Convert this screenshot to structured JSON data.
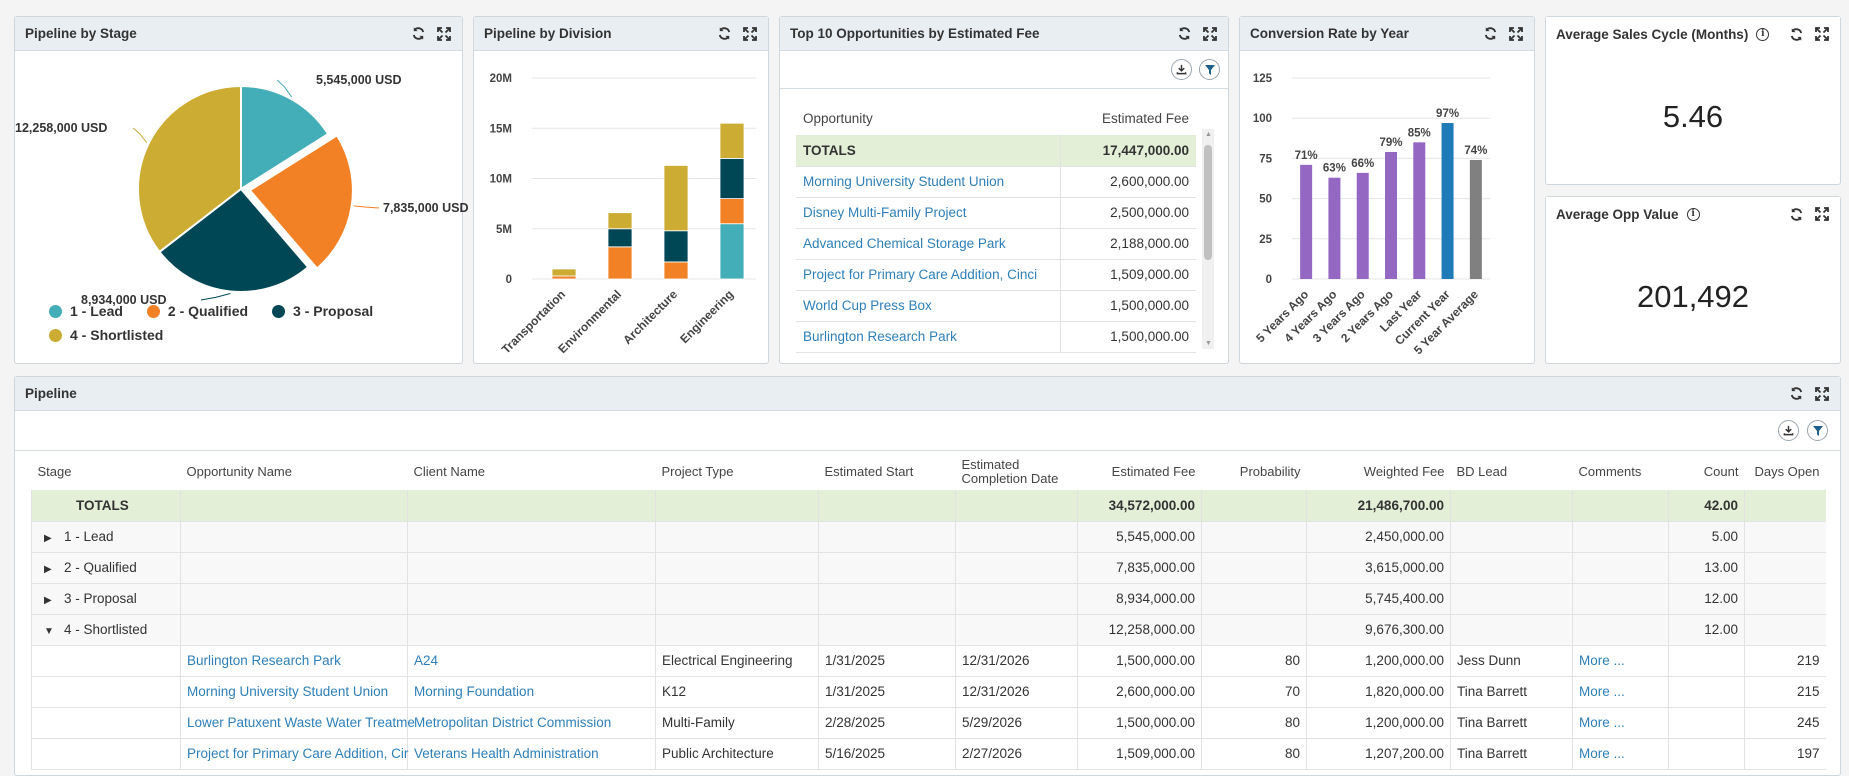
{
  "pie_panel": {
    "title": "Pipeline by Stage",
    "labels": [
      "5,545,000 USD",
      "7,835,000 USD",
      "8,934,000 USD",
      "12,258,000 USD"
    ],
    "legend": [
      "1 - Lead",
      "2 - Qualified",
      "3 - Proposal",
      "4 - Shortlisted"
    ]
  },
  "division_panel": {
    "title": "Pipeline by Division"
  },
  "top10_panel": {
    "title": "Top 10 Opportunities by Estimated Fee",
    "columns": [
      "Opportunity",
      "Estimated Fee"
    ],
    "totals": {
      "label": "TOTALS",
      "value": "17,447,000.00"
    },
    "rows": [
      {
        "name": "Morning University Student Union",
        "fee": "2,600,000.00"
      },
      {
        "name": "Disney Multi-Family Project",
        "fee": "2,500,000.00"
      },
      {
        "name": "Advanced Chemical Storage Park",
        "fee": "2,188,000.00"
      },
      {
        "name": "Project for Primary Care Addition, Cinci",
        "fee": "1,509,000.00"
      },
      {
        "name": "World Cup Press Box",
        "fee": "1,500,000.00"
      },
      {
        "name": "Burlington Research Park",
        "fee": "1,500,000.00"
      }
    ]
  },
  "conversion_panel": {
    "title": "Conversion Rate by Year"
  },
  "avg_cycle": {
    "title": "Average Sales Cycle (Months)",
    "value": "5.46"
  },
  "avg_opp": {
    "title": "Average Opp Value",
    "value": "201,492"
  },
  "pipeline": {
    "title": "Pipeline",
    "columns": [
      "Stage",
      "Opportunity Name",
      "Client Name",
      "Project Type",
      "Estimated Start",
      "Estimated Completion Date",
      "Estimated Fee",
      "Probability",
      "Weighted Fee",
      "BD Lead",
      "Comments",
      "Count",
      "Days Open"
    ],
    "totals": {
      "label": "TOTALS",
      "fee": "34,572,000.00",
      "weighted": "21,486,700.00",
      "count": "42.00"
    },
    "groups": [
      {
        "label": "1 - Lead",
        "fee": "5,545,000.00",
        "weighted": "2,450,000.00",
        "count": "5.00",
        "expanded": false
      },
      {
        "label": "2 - Qualified",
        "fee": "7,835,000.00",
        "weighted": "3,615,000.00",
        "count": "13.00",
        "expanded": false
      },
      {
        "label": "3 - Proposal",
        "fee": "8,934,000.00",
        "weighted": "5,745,400.00",
        "count": "12.00",
        "expanded": false
      },
      {
        "label": "4 - Shortlisted",
        "fee": "12,258,000.00",
        "weighted": "9,676,300.00",
        "count": "12.00",
        "expanded": true
      }
    ],
    "rows": [
      {
        "opp": "Burlington Research Park",
        "client": "A24",
        "type": "Electrical Engineering",
        "start": "1/31/2025",
        "end": "12/31/2026",
        "fee": "1,500,000.00",
        "prob": "80",
        "weighted": "1,200,000.00",
        "lead": "Jess Dunn",
        "comments": "More ...",
        "days": "219"
      },
      {
        "opp": "Morning University Student Union",
        "client": "Morning Foundation",
        "type": "K12",
        "start": "1/31/2025",
        "end": "12/31/2026",
        "fee": "2,600,000.00",
        "prob": "70",
        "weighted": "1,820,000.00",
        "lead": "Tina Barrett",
        "comments": "More ...",
        "days": "215"
      },
      {
        "opp": "Lower Patuxent Waste Water Treatme",
        "client": "Metropolitan District Commission",
        "type": "Multi-Family",
        "start": "2/28/2025",
        "end": "5/29/2026",
        "fee": "1,500,000.00",
        "prob": "80",
        "weighted": "1,200,000.00",
        "lead": "Tina Barrett",
        "comments": "More ...",
        "days": "245"
      },
      {
        "opp": "Project for Primary Care Addition, Cir",
        "client": "Veterans Health Administration",
        "type": "Public Architecture",
        "start": "5/16/2025",
        "end": "2/27/2026",
        "fee": "1,509,000.00",
        "prob": "80",
        "weighted": "1,207,200.00",
        "lead": "Tina Barrett",
        "comments": "More ...",
        "days": "197"
      }
    ]
  },
  "colors": {
    "lead": "#43adb8",
    "qualified": "#f28025",
    "proposal": "#004756",
    "shortlisted": "#ccac33",
    "purple": "#9467c3",
    "current": "#1f7bb8",
    "average": "#808080",
    "link": "#2e7fb8",
    "totals_bg": "#e3efd6"
  },
  "chart_data": [
    {
      "type": "pie",
      "title": "Pipeline by Stage",
      "categories": [
        "1 - Lead",
        "2 - Qualified",
        "3 - Proposal",
        "4 - Shortlisted"
      ],
      "values": [
        5545000,
        7835000,
        8934000,
        12258000
      ],
      "exploded": "2 - Qualified"
    },
    {
      "type": "bar",
      "stacked": true,
      "title": "Pipeline by Division",
      "categories": [
        "Transportation",
        "Environmental",
        "Architecture",
        "Engineering"
      ],
      "series": [
        {
          "name": "1 - Lead",
          "values": [
            0,
            0,
            0,
            5500000
          ]
        },
        {
          "name": "2 - Qualified",
          "values": [
            300000,
            3200000,
            1700000,
            2500000
          ]
        },
        {
          "name": "3 - Proposal",
          "values": [
            0,
            1800000,
            3100000,
            4000000
          ]
        },
        {
          "name": "4 - Shortlisted",
          "values": [
            700000,
            1600000,
            6500000,
            3500000
          ]
        }
      ],
      "ylim": [
        0,
        20000000
      ],
      "yticks": [
        "0",
        "5M",
        "10M",
        "15M",
        "20M"
      ]
    },
    {
      "type": "bar",
      "title": "Conversion Rate by Year",
      "categories": [
        "5 Years Ago",
        "4 Years Ago",
        "3 Years Ago",
        "2 Years Ago",
        "Last Year",
        "Current Year",
        "5 Year Average"
      ],
      "values": [
        71,
        63,
        66,
        79,
        85,
        97,
        74
      ],
      "labels": [
        "71%",
        "63%",
        "66%",
        "79%",
        "85%",
        "97%",
        "74%"
      ],
      "ylim": [
        0,
        125
      ],
      "yticks": [
        "0",
        "25",
        "50",
        "75",
        "100",
        "125"
      ]
    }
  ]
}
